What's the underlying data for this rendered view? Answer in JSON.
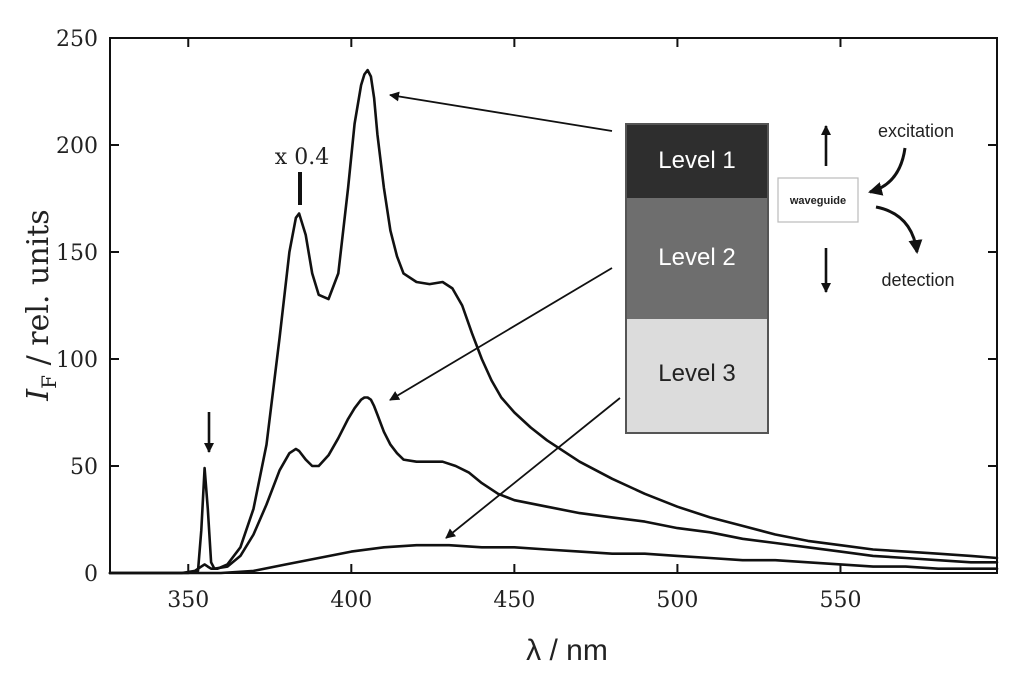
{
  "chart_data": {
    "type": "line",
    "xlabel": "λ / nm",
    "ylabel_symbol": "I",
    "ylabel_subscript": "F",
    "ylabel_rest": " / rel. units",
    "xlim": [
      326,
      598
    ],
    "ylim": [
      0,
      250
    ],
    "x_ticks": [
      350,
      400,
      450,
      500,
      550
    ],
    "y_ticks": [
      0,
      50,
      100,
      150,
      200,
      250
    ],
    "grid": false,
    "annotations": {
      "scale_note": "x 0.4",
      "peak_arrow_at_nm": 355
    },
    "inset": {
      "layers": [
        {
          "label": "Level 1",
          "color": "#2e2e2e",
          "text_color": "#ffffff"
        },
        {
          "label": "Level 2",
          "color": "#6e6e6e",
          "text_color": "#ffffff"
        },
        {
          "label": "Level 3",
          "color": "#dcdcdc",
          "text_color": "#222222"
        }
      ],
      "waveguide_label": "waveguide",
      "excitation_label": "excitation",
      "detection_label": "detection"
    },
    "series": [
      {
        "id": "level1",
        "x": [
          326,
          348,
          352,
          354,
          355,
          356,
          357,
          359,
          362,
          366,
          370,
          374,
          378,
          381,
          383,
          384,
          386,
          388,
          390,
          393,
          396,
          399,
          401,
          403,
          404,
          405,
          406,
          407,
          408,
          410,
          412,
          414,
          416,
          420,
          424,
          428,
          431,
          434,
          437,
          440,
          443,
          446,
          450,
          455,
          460,
          470,
          480,
          490,
          500,
          510,
          520,
          530,
          540,
          550,
          560,
          570,
          580,
          590,
          598
        ],
        "y": [
          0,
          0,
          1,
          3,
          4,
          3,
          2,
          2,
          4,
          12,
          30,
          60,
          110,
          150,
          166,
          168,
          158,
          140,
          130,
          128,
          140,
          180,
          210,
          228,
          233,
          235,
          232,
          222,
          205,
          180,
          160,
          148,
          140,
          136,
          135,
          136,
          133,
          125,
          112,
          100,
          90,
          82,
          75,
          68,
          62,
          52,
          44,
          37,
          31,
          26,
          22,
          18,
          15,
          13,
          11,
          10,
          9,
          8,
          7
        ]
      },
      {
        "id": "level2",
        "x": [
          326,
          350,
          353,
          354,
          355,
          356,
          357,
          358,
          362,
          366,
          370,
          374,
          378,
          381,
          383,
          384,
          386,
          388,
          390,
          393,
          396,
          399,
          401,
          403,
          404,
          405,
          406,
          407,
          408,
          410,
          412,
          414,
          416,
          420,
          424,
          428,
          432,
          436,
          440,
          445,
          450,
          460,
          470,
          480,
          490,
          500,
          510,
          520,
          530,
          540,
          550,
          560,
          570,
          580,
          590,
          598
        ],
        "y": [
          0,
          0,
          1,
          20,
          49,
          30,
          5,
          2,
          3,
          8,
          18,
          32,
          48,
          56,
          58,
          57,
          53,
          50,
          50,
          55,
          63,
          72,
          77,
          81,
          82,
          82,
          81,
          78,
          74,
          66,
          60,
          56,
          53,
          52,
          52,
          52,
          50,
          47,
          42,
          37,
          34,
          31,
          28,
          26,
          24,
          21,
          19,
          16,
          14,
          12,
          10,
          8,
          7,
          6,
          5,
          5
        ]
      },
      {
        "id": "level3",
        "x": [
          326,
          360,
          370,
          380,
          390,
          400,
          410,
          420,
          430,
          440,
          450,
          460,
          470,
          480,
          490,
          500,
          510,
          520,
          530,
          540,
          550,
          560,
          570,
          580,
          590,
          598
        ],
        "y": [
          0,
          0,
          1,
          4,
          7,
          10,
          12,
          13,
          13,
          12,
          12,
          11,
          10,
          9,
          9,
          8,
          7,
          6,
          6,
          5,
          4,
          3,
          3,
          2,
          2,
          2
        ]
      }
    ]
  }
}
